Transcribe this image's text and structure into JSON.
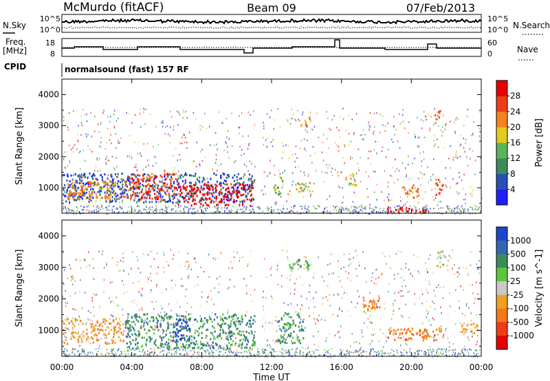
{
  "header": {
    "station": "McMurdo (fitACF)",
    "beam": "Beam 09",
    "date": "07/Feb/2013"
  },
  "aux_panels": {
    "nsky_label": "N.Sky",
    "nsearch_label": "N.Search",
    "freq_label_1": "Freq.",
    "freq_label_2": "[MHz]",
    "nave_label": "Nave",
    "cpid_label": "CPID",
    "noise_left_ticks": [
      "10^5",
      "10^0"
    ],
    "noise_right_ticks": [
      "10^5",
      "10^0"
    ],
    "freq_left_ticks": [
      "18",
      "8"
    ],
    "freq_right_ticks": [
      "60",
      "0"
    ],
    "cpid_text": "normalsound (fast) 157 RF"
  },
  "chart_data": [
    {
      "type": "heatmap",
      "title": "",
      "xlabel": "Time UT",
      "ylabel": "Slant Range [km]",
      "xlim": [
        0,
        24
      ],
      "ylim": [
        180,
        4500
      ],
      "x_ticks": [
        "00:00",
        "04:00",
        "08:00",
        "12:00",
        "16:00",
        "20:00",
        "00:00"
      ],
      "x_tick_values": [
        0,
        4,
        8,
        12,
        16,
        20,
        24
      ],
      "y_ticks": [
        "1000",
        "2000",
        "3000",
        "4000"
      ],
      "y_tick_values": [
        1000,
        2000,
        3000,
        4000
      ],
      "colorbar": {
        "label": "Power [dB]",
        "levels": [
          "4",
          "8",
          "12",
          "16",
          "20",
          "24",
          "28"
        ],
        "colors": [
          "#1e1eff",
          "#2850b4",
          "#3c8c5a",
          "#5ab45a",
          "#e6c81e",
          "#f5821e",
          "#f03c14",
          "#e60000"
        ]
      },
      "regions": [
        {
          "t0": 0.0,
          "t1": 11.0,
          "r0": 550,
          "r1": 1500,
          "level": 1
        },
        {
          "t0": 0.3,
          "t1": 3.8,
          "r0": 650,
          "r1": 1250,
          "level": 5
        },
        {
          "t0": 3.8,
          "t1": 6.5,
          "r0": 650,
          "r1": 1500,
          "level": 6
        },
        {
          "t0": 6.5,
          "t1": 10.9,
          "r0": 450,
          "r1": 1150,
          "level": 7
        },
        {
          "t0": 12.1,
          "t1": 12.6,
          "r0": 800,
          "r1": 1400,
          "level": 3
        },
        {
          "t0": 13.3,
          "t1": 14.4,
          "r0": 900,
          "r1": 1200,
          "level": 4
        },
        {
          "t0": 13.6,
          "t1": 14.2,
          "r0": 3000,
          "r1": 3300,
          "level": 5
        },
        {
          "t0": 16.2,
          "t1": 16.8,
          "r0": 1100,
          "r1": 1500,
          "level": 4
        },
        {
          "t0": 19.4,
          "t1": 20.4,
          "r0": 700,
          "r1": 1100,
          "level": 5
        },
        {
          "t0": 18.6,
          "t1": 20.8,
          "r0": 200,
          "r1": 400,
          "level": 7
        },
        {
          "t0": 21.3,
          "t1": 21.8,
          "r0": 800,
          "r1": 1300,
          "level": 6
        },
        {
          "t0": 21.3,
          "t1": 21.7,
          "r0": 3200,
          "r1": 3600,
          "level": 5
        }
      ]
    },
    {
      "type": "heatmap",
      "title": "",
      "xlabel": "Time UT",
      "ylabel": "Slant Range [km]",
      "xlim": [
        0,
        24
      ],
      "ylim": [
        180,
        4500
      ],
      "x_ticks": [
        "00:00",
        "04:00",
        "08:00",
        "12:00",
        "16:00",
        "20:00",
        "00:00"
      ],
      "x_tick_values": [
        0,
        4,
        8,
        12,
        16,
        20,
        24
      ],
      "y_ticks": [
        "1000",
        "2000",
        "3000",
        "4000"
      ],
      "y_tick_values": [
        1000,
        2000,
        3000,
        4000
      ],
      "colorbar": {
        "label": "Velocity [m s^-1]",
        "levels": [
          "1000",
          "500",
          "100",
          "25",
          "-25",
          "-100",
          "-500",
          "-1000"
        ],
        "colors": [
          "#1e46c8",
          "#3264b4",
          "#3c8c5a",
          "#5ac83c",
          "#c8c8c8",
          "#f0a01e",
          "#f57814",
          "#f03c14",
          "#e60000"
        ]
      },
      "regions": [
        {
          "t0": 0.0,
          "t1": 3.6,
          "r0": 600,
          "r1": 1400,
          "level": 5
        },
        {
          "t0": 3.6,
          "t1": 11.0,
          "r0": 450,
          "r1": 1550,
          "level": 2
        },
        {
          "t0": 6.3,
          "t1": 7.3,
          "r0": 700,
          "r1": 1400,
          "level": 0
        },
        {
          "t0": 12.3,
          "t1": 13.8,
          "r0": 600,
          "r1": 1600,
          "level": 2
        },
        {
          "t0": 12.9,
          "t1": 14.3,
          "r0": 2900,
          "r1": 3300,
          "level": 3
        },
        {
          "t0": 17.2,
          "t1": 18.2,
          "r0": 1600,
          "r1": 2100,
          "level": 6
        },
        {
          "t0": 18.6,
          "t1": 21.8,
          "r0": 700,
          "r1": 1100,
          "level": 6
        },
        {
          "t0": 21.4,
          "t1": 21.9,
          "r0": 3000,
          "r1": 3600,
          "level": 4
        },
        {
          "t0": 22.8,
          "t1": 23.8,
          "r0": 900,
          "r1": 1300,
          "level": 5
        }
      ]
    }
  ]
}
